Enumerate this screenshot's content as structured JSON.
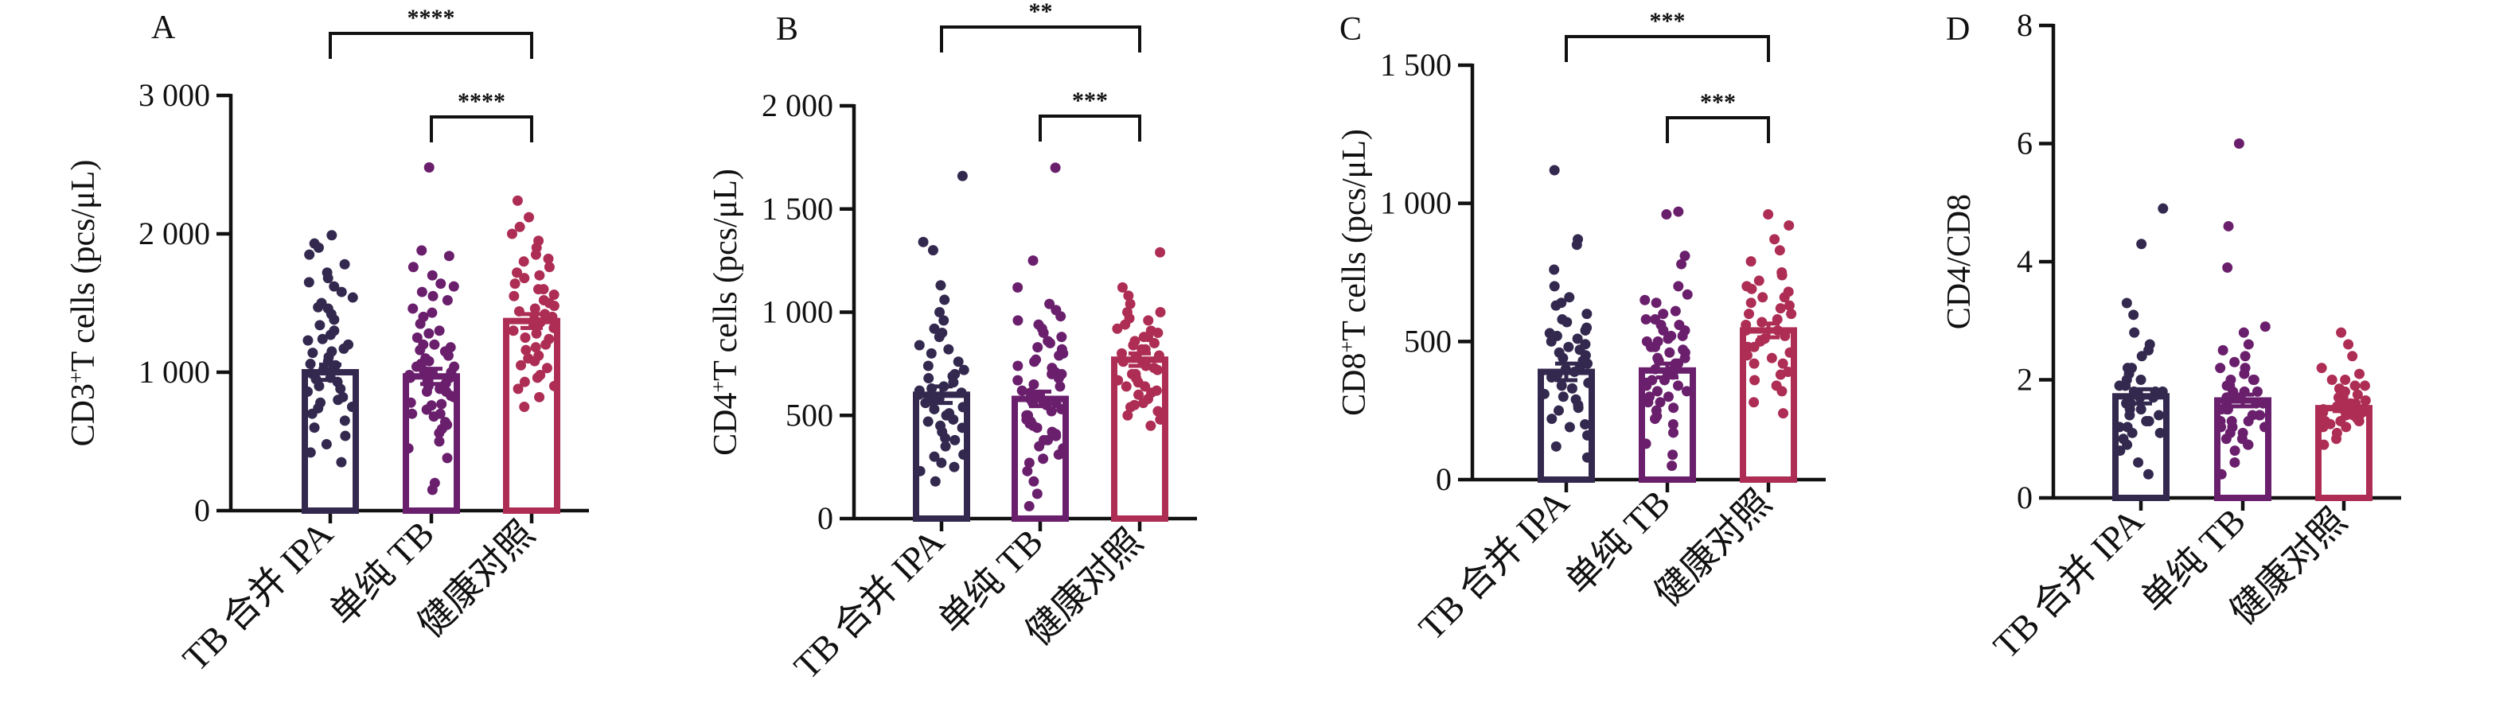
{
  "figure": {
    "panels": [
      {
        "id": "A",
        "letter": "A",
        "ylabel_main": "CD3",
        "ylabel_sup": "+",
        "ylabel_rest": "T cells (pcs/μL)"
      },
      {
        "id": "B",
        "letter": "B",
        "ylabel_main": "CD4",
        "ylabel_sup": "+",
        "ylabel_rest": "T cells (pcs/μL)"
      },
      {
        "id": "C",
        "letter": "C",
        "ylabel_main": "CD8",
        "ylabel_sup": "+",
        "ylabel_rest": "T cells (pcs/μL)"
      },
      {
        "id": "D",
        "letter": "D",
        "ylabel_main": "CD4/CD8",
        "ylabel_sup": "",
        "ylabel_rest": ""
      }
    ]
  },
  "colors": {
    "tb_ipa": "#33294f",
    "tb_only": "#6a1f6d",
    "healthy": "#ad2d55",
    "axis": "#111111"
  },
  "chart_data": [
    {
      "type": "bar",
      "panel": "A",
      "categories": [
        "TB 合并 IPA",
        "单纯 TB",
        "健康对照"
      ],
      "values": [
        1000,
        970,
        1370
      ],
      "errors": [
        55,
        55,
        50
      ],
      "ylim": [
        0,
        3000
      ],
      "yticks": [
        0,
        1000,
        2000,
        3000
      ],
      "ytick_labels": [
        "0",
        "1 000",
        "2 000",
        "3 000"
      ],
      "ylabel": "CD3+T cells (pcs/μL)",
      "significance": [
        {
          "from": 0,
          "to": 2,
          "label": "****"
        },
        {
          "from": 1,
          "to": 2,
          "label": "****"
        }
      ],
      "points": [
        [
          350,
          420,
          480,
          540,
          600,
          650,
          700,
          750,
          780,
          820,
          860,
          900,
          930,
          960,
          990,
          1020,
          1050,
          1080,
          1110,
          1140,
          1170,
          1200,
          1240,
          1270,
          1300,
          1340,
          1380,
          1420,
          1460,
          1500,
          1540,
          1580,
          1620,
          1680,
          1720,
          1780,
          1850,
          1930,
          1990,
          880,
          950,
          1000,
          1060,
          1150,
          740,
          800,
          1230,
          1470,
          1650,
          1900
        ],
        [
          150,
          200,
          380,
          450,
          500,
          560,
          620,
          680,
          730,
          770,
          820,
          860,
          900,
          940,
          980,
          1010,
          1040,
          1080,
          1120,
          1160,
          1200,
          1250,
          1300,
          1350,
          1400,
          1460,
          1520,
          1580,
          1640,
          1700,
          1760,
          1840,
          2480,
          920,
          960,
          1000,
          1060,
          830,
          780,
          700,
          640,
          1100,
          1180,
          1280,
          1430,
          1550,
          1620,
          1880,
          1150,
          1000,
          880,
          860,
          960,
          1040,
          1200,
          590,
          700,
          760
        ],
        [
          750,
          820,
          880,
          930,
          980,
          1030,
          1080,
          1120,
          1160,
          1200,
          1240,
          1280,
          1320,
          1360,
          1400,
          1440,
          1480,
          1520,
          1560,
          1600,
          1640,
          1680,
          1720,
          1760,
          1800,
          1850,
          1900,
          1950,
          2000,
          2050,
          2120,
          2240,
          1340,
          1380,
          1420,
          1300,
          1250,
          1500,
          1550,
          1600,
          1700,
          1180,
          1100,
          1050,
          960,
          900,
          1460,
          1820
        ]
      ]
    },
    {
      "type": "bar",
      "panel": "B",
      "categories": [
        "TB 合并 IPA",
        "单纯 TB",
        "健康对照"
      ],
      "values": [
        600,
        580,
        770
      ],
      "errors": [
        40,
        35,
        30
      ],
      "ylim": [
        0,
        2000
      ],
      "yticks": [
        0,
        500,
        1000,
        1500,
        2000
      ],
      "ytick_labels": [
        "0",
        "500",
        "1 000",
        "1 500",
        "2 000"
      ],
      "ylabel": "CD4+T cells (pcs/μL)",
      "significance": [
        {
          "from": 0,
          "to": 2,
          "label": "**"
        },
        {
          "from": 1,
          "to": 2,
          "label": "***"
        }
      ],
      "points": [
        [
          180,
          230,
          270,
          310,
          350,
          390,
          420,
          450,
          480,
          510,
          540,
          570,
          600,
          630,
          660,
          690,
          720,
          760,
          800,
          840,
          880,
          920,
          960,
          1000,
          1060,
          1130,
          1300,
          1340,
          1660,
          500,
          560,
          640,
          700,
          440,
          380,
          580,
          620,
          680,
          740,
          820,
          900,
          300,
          250,
          470,
          530,
          610
        ],
        [
          60,
          120,
          180,
          230,
          270,
          310,
          350,
          380,
          410,
          440,
          470,
          500,
          530,
          560,
          590,
          620,
          650,
          680,
          710,
          740,
          770,
          800,
          830,
          860,
          900,
          940,
          980,
          1040,
          1120,
          1250,
          1700,
          450,
          520,
          580,
          640,
          700,
          760,
          820,
          880,
          340,
          290,
          400,
          480,
          550,
          610,
          670,
          730,
          790,
          850,
          920,
          960,
          1010,
          560,
          600,
          500,
          460,
          420,
          380,
          700
        ],
        [
          450,
          500,
          540,
          580,
          610,
          640,
          670,
          700,
          730,
          760,
          790,
          820,
          850,
          880,
          910,
          940,
          970,
          1000,
          1040,
          1080,
          1120,
          1290,
          620,
          660,
          700,
          740,
          780,
          820,
          860,
          900,
          550,
          600,
          640,
          680,
          720,
          760,
          800,
          840,
          880,
          920,
          960,
          1000,
          480,
          520,
          560
        ]
      ]
    },
    {
      "type": "bar",
      "panel": "C",
      "categories": [
        "TB 合并 IPA",
        "单纯 TB",
        "健康对照"
      ],
      "values": [
        390,
        395,
        540
      ],
      "errors": [
        30,
        25,
        25
      ],
      "ylim": [
        0,
        1500
      ],
      "yticks": [
        0,
        500,
        1000,
        1500
      ],
      "ytick_labels": [
        "0",
        "500",
        "1 000",
        "1 500"
      ],
      "ylabel": "CD8+T cells (pcs/μL)",
      "significance": [
        {
          "from": 0,
          "to": 2,
          "label": "***"
        },
        {
          "from": 1,
          "to": 2,
          "label": "***"
        }
      ],
      "points": [
        [
          80,
          120,
          160,
          190,
          220,
          250,
          270,
          290,
          310,
          330,
          350,
          370,
          390,
          410,
          430,
          450,
          470,
          490,
          510,
          530,
          550,
          570,
          600,
          630,
          660,
          700,
          760,
          850,
          870,
          1120,
          300,
          340,
          380,
          420,
          460,
          500,
          540,
          580,
          260,
          200,
          400,
          440,
          480,
          520,
          640
        ],
        [
          50,
          90,
          130,
          170,
          200,
          230,
          260,
          280,
          300,
          320,
          340,
          360,
          380,
          400,
          420,
          440,
          460,
          480,
          500,
          520,
          540,
          560,
          580,
          610,
          640,
          670,
          700,
          780,
          810,
          960,
          970,
          300,
          340,
          380,
          420,
          460,
          500,
          540,
          580,
          250,
          220,
          360,
          400,
          440,
          480,
          520,
          560,
          600,
          320,
          280,
          350,
          390,
          430,
          470,
          510,
          650
        ],
        [
          240,
          280,
          320,
          360,
          390,
          420,
          450,
          480,
          510,
          540,
          570,
          600,
          630,
          660,
          690,
          720,
          750,
          790,
          830,
          870,
          920,
          960,
          420,
          460,
          500,
          540,
          580,
          620,
          660,
          700,
          740,
          380,
          340,
          480,
          520,
          560,
          600,
          640,
          680,
          440
        ]
      ]
    },
    {
      "type": "bar",
      "panel": "D",
      "categories": [
        "TB 合并 IPA",
        "单纯 TB",
        "健康对照"
      ],
      "values": [
        1.72,
        1.65,
        1.52
      ],
      "errors": [
        0.12,
        0.1,
        0.05
      ],
      "ylim": [
        0,
        8
      ],
      "yticks": [
        0,
        2,
        4,
        6,
        8
      ],
      "ytick_labels": [
        "0",
        "2",
        "4",
        "6",
        "8"
      ],
      "ylabel": "CD4/CD8",
      "significance": [],
      "points": [
        [
          0.4,
          0.6,
          0.8,
          0.9,
          1.0,
          1.1,
          1.2,
          1.3,
          1.4,
          1.5,
          1.6,
          1.7,
          1.8,
          1.9,
          2.0,
          2.1,
          2.2,
          2.4,
          2.6,
          2.8,
          3.1,
          3.3,
          4.3,
          4.9,
          1.2,
          1.4,
          1.6,
          1.8,
          2.0,
          1.5,
          1.7,
          1.9,
          1.3,
          1.1,
          1.6,
          1.8,
          2.2,
          2.5
        ],
        [
          0.4,
          0.6,
          0.8,
          0.9,
          1.0,
          1.1,
          1.2,
          1.3,
          1.4,
          1.5,
          1.6,
          1.7,
          1.8,
          1.9,
          2.0,
          2.1,
          2.2,
          2.4,
          2.6,
          2.8,
          2.9,
          3.9,
          4.6,
          6.0,
          1.2,
          1.4,
          1.6,
          1.8,
          2.0,
          1.5,
          1.7,
          1.9,
          1.3,
          1.1,
          1.0,
          0.9,
          1.6,
          1.8,
          2.2,
          2.5,
          1.4,
          1.5,
          1.7,
          1.3,
          1.2,
          2.0,
          2.3
        ],
        [
          0.9,
          1.0,
          1.1,
          1.2,
          1.25,
          1.3,
          1.35,
          1.4,
          1.45,
          1.5,
          1.55,
          1.6,
          1.65,
          1.7,
          1.75,
          1.8,
          1.85,
          1.9,
          2.0,
          2.1,
          2.2,
          2.4,
          2.6,
          2.8,
          1.2,
          1.3,
          1.4,
          1.5,
          1.6,
          1.7,
          1.8,
          1.5,
          1.4,
          1.6,
          1.3,
          1.55,
          1.45,
          1.9,
          2.0
        ]
      ]
    }
  ]
}
